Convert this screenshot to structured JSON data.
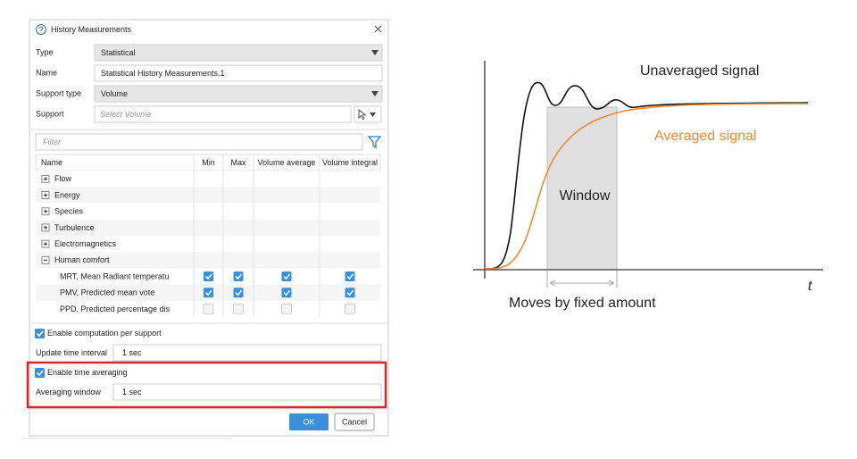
{
  "dialog": {
    "title": "History Measurements",
    "type": {
      "label": "Type",
      "value": "Statistical"
    },
    "name": {
      "label": "Name",
      "value": "Statistical History Measurements.1"
    },
    "support_type": {
      "label": "Support type",
      "value": "Volume"
    },
    "support": {
      "label": "Support",
      "placeholder": "Select Volume"
    },
    "filter_placeholder": "Filter",
    "table": {
      "columns": [
        "Name",
        "Min",
        "Max",
        "Volume average",
        "Volume integral"
      ],
      "groups": [
        {
          "label": "Flow",
          "expanded": false
        },
        {
          "label": "Energy",
          "expanded": false
        },
        {
          "label": "Species",
          "expanded": false
        },
        {
          "label": "Turbulence",
          "expanded": false
        },
        {
          "label": "Electromagnetics",
          "expanded": false
        },
        {
          "label": "Human comfort",
          "expanded": true,
          "items": [
            {
              "label": "MRT, Mean Radiant temperatu",
              "checks": [
                true,
                true,
                true,
                true
              ]
            },
            {
              "label": "PMV, Predicted mean vote",
              "checks": [
                true,
                true,
                true,
                true
              ]
            },
            {
              "label": "PPD, Predicted percentage dis",
              "checks": [
                false,
                false,
                false,
                false
              ]
            }
          ]
        }
      ]
    },
    "enable_computation": {
      "label": "Enable computation per support",
      "checked": true
    },
    "update_time_interval": {
      "label": "Update time interval",
      "value": "1 sec"
    },
    "enable_time_averaging": {
      "label": "Enable time averaging",
      "checked": true
    },
    "averaging_window": {
      "label": "Averaging window",
      "value": "1 sec"
    },
    "buttons": {
      "ok": "OK",
      "cancel": "Cancel"
    }
  },
  "diagram": {
    "unaveraged_label": "Unaveraged signal",
    "averaged_label": "Averaged signal",
    "window_label": "Window",
    "moves_label": "Moves by fixed amount",
    "axis_label": "t"
  }
}
